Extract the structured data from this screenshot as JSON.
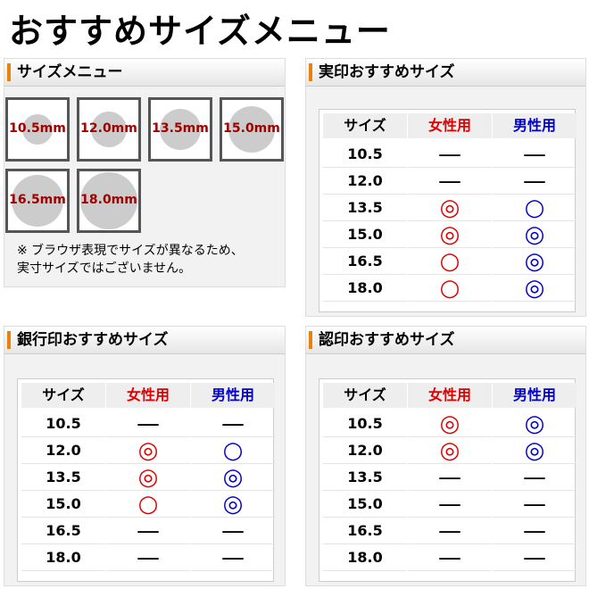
{
  "header": {
    "title": "おすすめサイズメニュー"
  },
  "size_menu": {
    "title": "サイズメニュー",
    "sizes": [
      "10.5mm",
      "12.0mm",
      "13.5mm",
      "15.0mm",
      "16.5mm",
      "18.0mm"
    ],
    "note": [
      "※ ブラウザ表現でサイズが異なるため、",
      "実寸サイズではございません。"
    ]
  },
  "panels": [
    {
      "title": "実印おすすめサイズ",
      "columns": [
        "サイズ",
        "女性用",
        "男性用"
      ],
      "rows": [
        [
          "10.5",
          "—",
          "—"
        ],
        [
          "12.0",
          "—",
          "—"
        ],
        [
          "13.5",
          "◎",
          "○"
        ],
        [
          "15.0",
          "◎",
          "◎"
        ],
        [
          "16.5",
          "○",
          "◎"
        ],
        [
          "18.0",
          "○",
          "◎"
        ]
      ]
    },
    {
      "title": "銀行印おすすめサイズ",
      "columns": [
        "サイズ",
        "女性用",
        "男性用"
      ],
      "rows": [
        [
          "10.5",
          "—",
          "—"
        ],
        [
          "12.0",
          "◎",
          "○"
        ],
        [
          "13.5",
          "◎",
          "◎"
        ],
        [
          "15.0",
          "○",
          "◎"
        ],
        [
          "16.5",
          "—",
          "—"
        ],
        [
          "18.0",
          "—",
          "—"
        ]
      ]
    },
    {
      "title": "認印おすすめサイズ",
      "columns": [
        "サイズ",
        "女性用",
        "男性用"
      ],
      "rows": [
        [
          "10.5",
          "◎",
          "◎"
        ],
        [
          "12.0",
          "◎",
          "◎"
        ],
        [
          "13.5",
          "—",
          "—"
        ],
        [
          "15.0",
          "—",
          "—"
        ],
        [
          "16.5",
          "—",
          "—"
        ],
        [
          "18.0",
          "—",
          "—"
        ]
      ]
    }
  ]
}
